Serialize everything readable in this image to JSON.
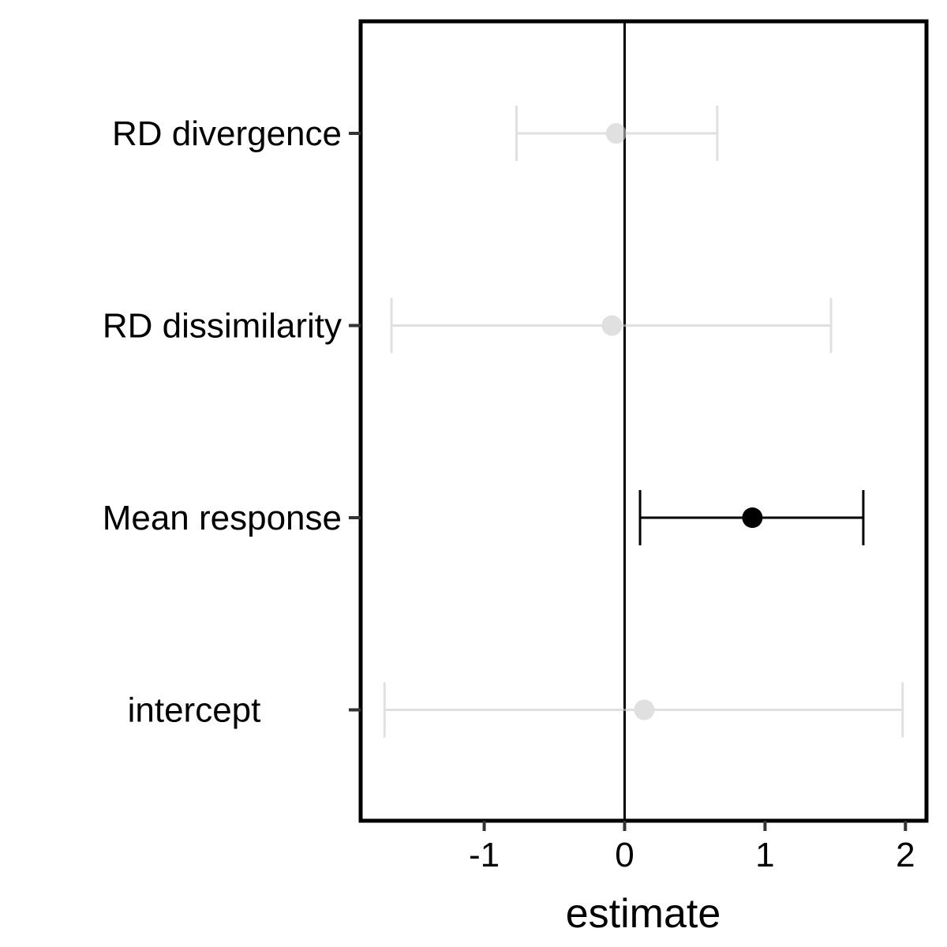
{
  "chart_data": {
    "type": "scatter",
    "variant": "coefficient-plot",
    "xlabel": "estimate",
    "ylabel": "",
    "xlim": [
      -1.88,
      2.15
    ],
    "x_ticks": [
      "-1",
      "0",
      "1",
      "2"
    ],
    "reference_line_x": 0,
    "legend": "none",
    "grid": false,
    "colors": {
      "significant": "#000000",
      "non_significant": "#cccccc"
    },
    "points": [
      {
        "label": "RD divergence",
        "estimate": -0.06,
        "lower": -0.77,
        "upper": 0.66,
        "significant": false
      },
      {
        "label": "RD dissimilarity",
        "estimate": -0.09,
        "lower": -1.66,
        "upper": 1.47,
        "significant": false
      },
      {
        "label": "Mean response",
        "estimate": 0.91,
        "lower": 0.11,
        "upper": 1.7,
        "significant": true
      },
      {
        "label": "intercept",
        "estimate": 0.14,
        "lower": -1.71,
        "upper": 1.98,
        "significant": false
      }
    ]
  }
}
